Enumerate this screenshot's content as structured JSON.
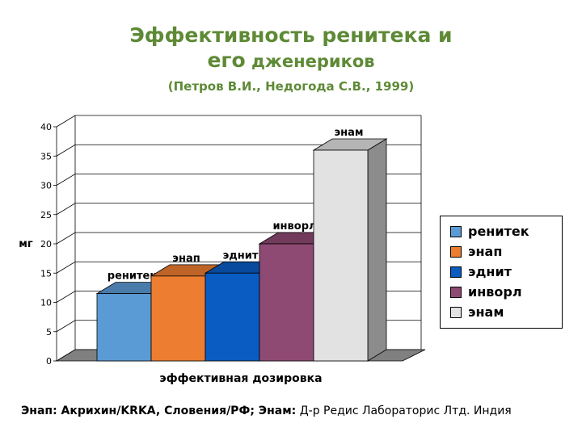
{
  "slide": {
    "title_line1": "Эффективность ренитека и",
    "title_line2_big": "его",
    "title_line2_small": " дженериков",
    "subtitle": "(Петров В.И., Недогода С.В., 1999)"
  },
  "chart_data": {
    "type": "bar",
    "categories": [
      "ренитек",
      "энап",
      "эднит",
      "инворл",
      "энам"
    ],
    "values": [
      11.5,
      14.5,
      15,
      20,
      36
    ],
    "ylabel": "мг",
    "xlabel": "эффективная дозировка",
    "ylim": [
      0,
      40
    ],
    "yticks": [
      "0",
      "5",
      "10",
      "15",
      "20",
      "25",
      "30",
      "35",
      "40"
    ],
    "legend_position": "right",
    "grid": true,
    "three_d": true,
    "series_colors": [
      "#5b9bd5",
      "#ed7d31",
      "#0a5cc2",
      "#8f4a73",
      "#e2e2e2"
    ],
    "data_labels": [
      "ренитек",
      "энап",
      "эднит",
      "инворл",
      "энам"
    ]
  },
  "legend": {
    "items": [
      {
        "label": "ренитек",
        "color": "#5b9bd5"
      },
      {
        "label": "энап",
        "color": "#ed7d31"
      },
      {
        "label": "эднит",
        "color": "#0a5cc2"
      },
      {
        "label": "инворл",
        "color": "#8f4a73"
      },
      {
        "label": "энам",
        "color": "#e2e2e2"
      }
    ]
  },
  "footnote": {
    "bold_part": "Энап: Акрихин/KRKA, Словения/РФ; Энам:",
    "normal_part": " Д-р Редис Лабораторис Лтд. Индия"
  }
}
